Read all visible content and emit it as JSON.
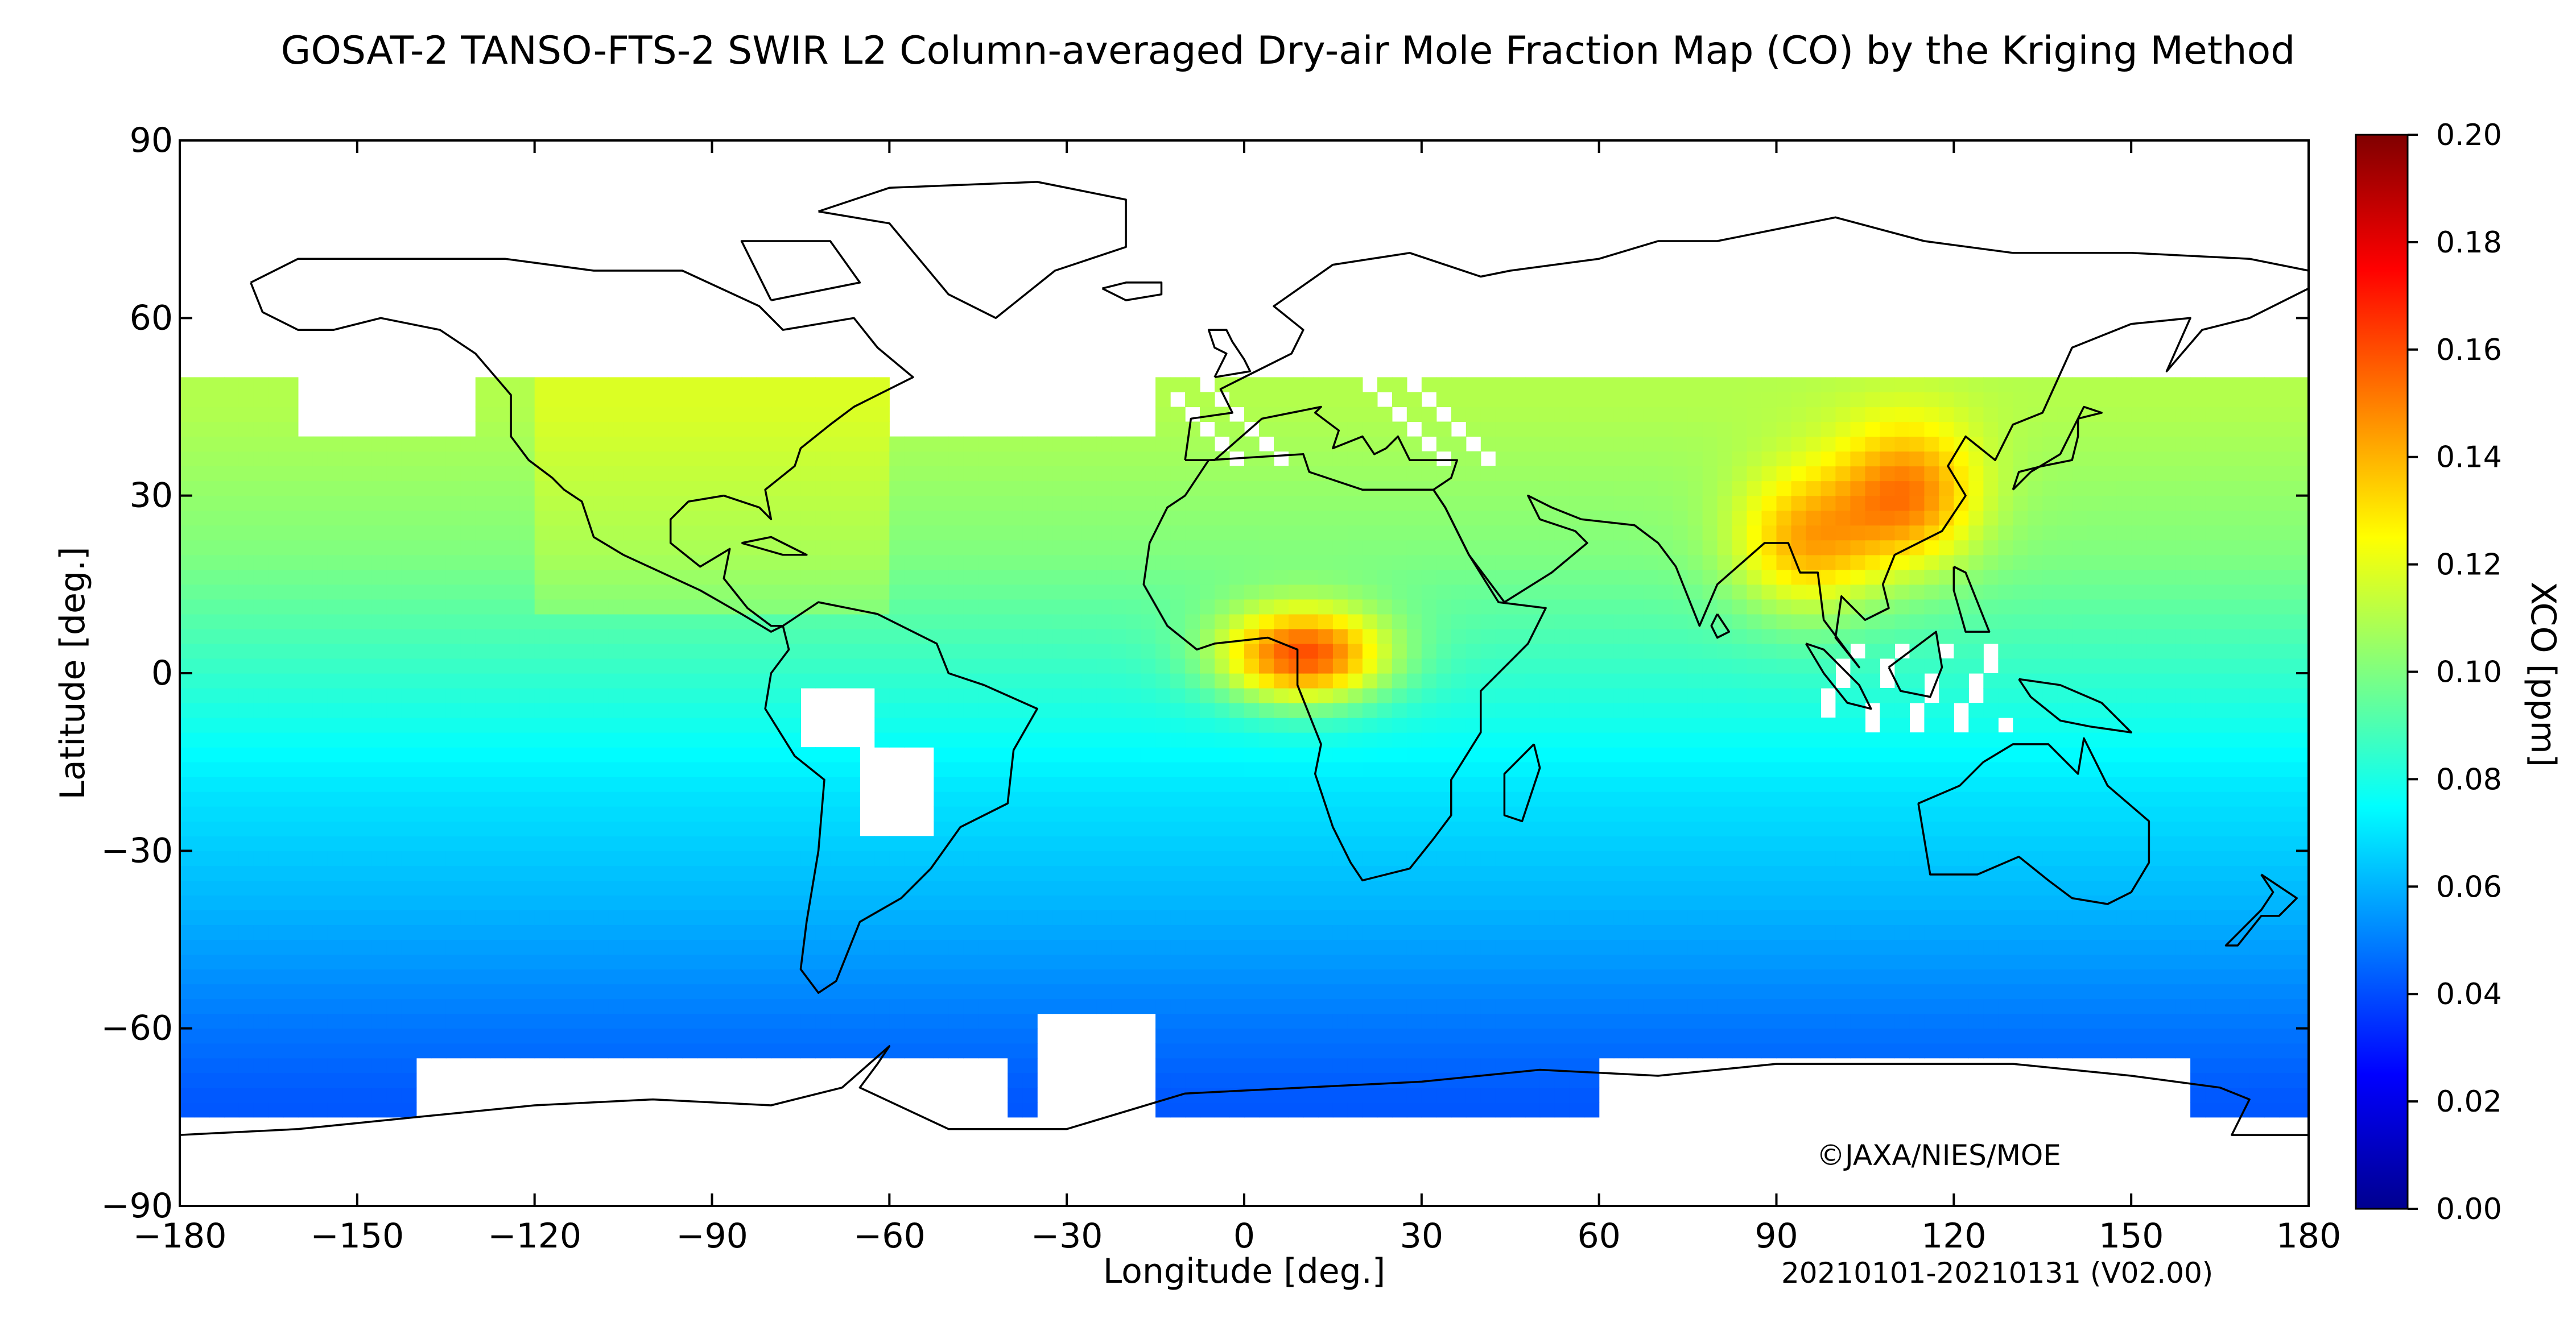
{
  "title": "GOSAT-2 TANSO-FTS-2 SWIR L2 Column-averaged Dry-air Mole Fraction Map (CO) by the Kriging Method",
  "footer": {
    "copyright": "©JAXA/NIES/MOE",
    "period": "20210101-20210131 (V02.00)"
  },
  "colors": {
    "accent_low": "#00008f",
    "accent_mid": "#80ff80",
    "accent_high": "#800000",
    "no_data": "#ffffff",
    "coastline": "#000000"
  },
  "chart_data": {
    "type": "heatmap",
    "xlabel": "Longitude [deg.]",
    "ylabel": "Latitude [deg.]",
    "xlim": [
      -180,
      180
    ],
    "ylim": [
      -90,
      90
    ],
    "x_ticks": [
      -180,
      -150,
      -120,
      -90,
      -60,
      -30,
      0,
      30,
      60,
      90,
      120,
      150,
      180
    ],
    "y_ticks": [
      -90,
      -60,
      -30,
      0,
      30,
      60,
      90
    ],
    "x_tick_labels": [
      "−180",
      "−150",
      "−120",
      "−90",
      "−60",
      "−30",
      "0",
      "30",
      "60",
      "90",
      "120",
      "150",
      "180"
    ],
    "y_tick_labels": [
      "−90",
      "−60",
      "−30",
      "0",
      "30",
      "60",
      "90"
    ],
    "colorbar": {
      "label": "XCO [ppm]",
      "range": [
        0.0,
        0.2
      ],
      "ticks": [
        0.0,
        0.02,
        0.04,
        0.06,
        0.08,
        0.1,
        0.12,
        0.14,
        0.16,
        0.18,
        0.2
      ],
      "tick_labels": [
        "0.00",
        "0.02",
        "0.04",
        "0.06",
        "0.08",
        "0.10",
        "0.12",
        "0.14",
        "0.16",
        "0.18",
        "0.20"
      ],
      "colormap": "jet"
    },
    "grid_resolution_deg": 2.5,
    "data_coverage_lat": [
      -75,
      50
    ],
    "hotspots": [
      {
        "region": "Central Africa",
        "lon": 10,
        "lat": 3,
        "xco": 0.16
      },
      {
        "region": "East China",
        "lon": 112,
        "lat": 30,
        "xco": 0.15
      },
      {
        "region": "Northern India / Indochina",
        "lon": 95,
        "lat": 22,
        "xco": 0.14
      }
    ],
    "background_by_latitude": [
      {
        "lat": 45,
        "xco": 0.11
      },
      {
        "lat": 20,
        "xco": 0.1
      },
      {
        "lat": 0,
        "xco": 0.085
      },
      {
        "lat": -20,
        "xco": 0.07
      },
      {
        "lat": -40,
        "xco": 0.06
      },
      {
        "lat": -60,
        "xco": 0.048
      },
      {
        "lat": -72,
        "xco": 0.042
      }
    ],
    "no_data_regions": [
      "Arctic and high northern latitudes",
      "Antarctica",
      "Amazon basin patch",
      "South Brazil patch",
      "Maritime SE Asia patches"
    ]
  }
}
